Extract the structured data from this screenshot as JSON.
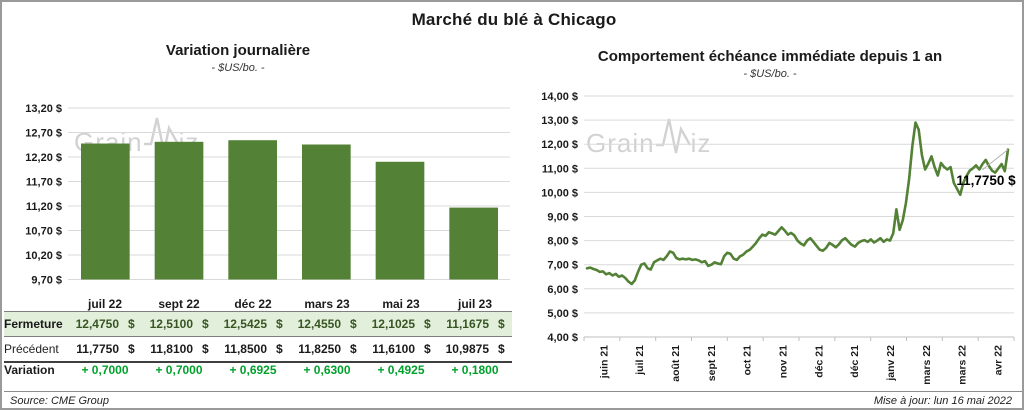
{
  "page": {
    "title": "Marché du blé à Chicago",
    "source": "Source: CME Group",
    "updated": "Mise à jour: lun 16 mai 2022",
    "watermark_prefix": "Grain",
    "watermark_suffix": "iz"
  },
  "colors": {
    "chart_green": "#538135",
    "fermeture_text": "#375623",
    "variation_green": "#00a12b",
    "highlight_row_bg": "#e2efda",
    "gridline": "#d9d9d9",
    "axis_gray": "#bfbfbf",
    "frame_border": "#9a9a9a",
    "watermark_gray": "#d2d2d2"
  },
  "chart_data": [
    {
      "type": "bar",
      "title": "Variation journalière",
      "subtitle": "- $US/bo. -",
      "categories": [
        "juil 22",
        "sept 22",
        "déc 22",
        "mars 23",
        "mai 23",
        "juil 23"
      ],
      "values": [
        12.475,
        12.51,
        12.5425,
        12.455,
        12.1025,
        11.1675
      ],
      "ylabel": "$US/bo.",
      "ylim": [
        9.7,
        13.2
      ],
      "ytick_step": 0.5,
      "ytick_labels": [
        "13,20 $",
        "12,70 $",
        "12,20 $",
        "11,70 $",
        "11,20 $",
        "10,70 $",
        "10,20 $",
        "9,70 $"
      ],
      "grid": true
    },
    {
      "type": "line",
      "title": "Comportement échéance immédiate depuis 1 an",
      "subtitle": "- $US/bo. -",
      "x_tick_labels": [
        "juin 21",
        "juil 21",
        "août 21",
        "sept 21",
        "oct 21",
        "nov 21",
        "déc 21",
        "déc 21",
        "janv 22",
        "mars 22",
        "mars 22",
        "avr 22"
      ],
      "ylim": [
        4.0,
        14.0
      ],
      "ytick_step": 1.0,
      "ytick_labels": [
        "14,00 $",
        "13,00 $",
        "12,00 $",
        "11,00 $",
        "10,00 $",
        "9,00 $",
        "8,00 $",
        "7,00 $",
        "6,00 $",
        "5,00 $",
        "4,00 $"
      ],
      "annotation": "11,7750 $",
      "last_value": 11.775,
      "grid": true,
      "values": [
        6.85,
        6.88,
        6.82,
        6.78,
        6.7,
        6.72,
        6.6,
        6.65,
        6.55,
        6.62,
        6.5,
        6.55,
        6.45,
        6.3,
        6.2,
        6.35,
        6.7,
        7.0,
        7.05,
        6.85,
        6.8,
        7.1,
        7.18,
        7.25,
        7.2,
        7.35,
        7.55,
        7.5,
        7.28,
        7.22,
        7.25,
        7.22,
        7.25,
        7.2,
        7.22,
        7.18,
        7.1,
        7.15,
        6.95,
        7.0,
        7.1,
        7.05,
        7.02,
        7.35,
        7.5,
        7.45,
        7.25,
        7.2,
        7.35,
        7.42,
        7.55,
        7.62,
        7.75,
        7.9,
        8.1,
        8.25,
        8.2,
        8.35,
        8.3,
        8.25,
        8.4,
        8.55,
        8.42,
        8.25,
        8.32,
        8.22,
        8.0,
        7.88,
        7.8,
        8.0,
        8.1,
        7.95,
        7.78,
        7.62,
        7.58,
        7.7,
        7.9,
        7.82,
        7.72,
        7.85,
        8.02,
        8.1,
        7.95,
        7.82,
        7.75,
        7.9,
        7.98,
        8.02,
        7.95,
        8.05,
        7.92,
        8.0,
        8.1,
        7.95,
        8.05,
        8.0,
        8.3,
        9.3,
        8.45,
        8.85,
        9.55,
        10.55,
        11.9,
        12.9,
        12.6,
        11.55,
        10.95,
        11.2,
        11.5,
        11.05,
        10.7,
        11.22,
        11.05,
        10.95,
        11.05,
        10.4,
        10.15,
        9.9,
        10.4,
        10.68,
        10.9,
        11.0,
        11.12,
        10.95,
        11.18,
        11.35,
        11.1,
        10.9,
        10.82,
        11.0,
        11.18,
        10.88,
        11.775
      ]
    }
  ],
  "table": {
    "currency_symbol": "$",
    "columns": [
      "juil 22",
      "sept 22",
      "déc 22",
      "mars 23",
      "mai 23",
      "juil 23"
    ],
    "rows": [
      {
        "label": "Fermeture",
        "values": [
          "12,4750",
          "12,5100",
          "12,5425",
          "12,4550",
          "12,1025",
          "11,1675"
        ],
        "currency": true,
        "highlight": true
      },
      {
        "label": "Précédent",
        "values": [
          "11,7750",
          "11,8100",
          "11,8500",
          "11,8250",
          "11,6100",
          "10,9875"
        ],
        "currency": true,
        "highlight": false
      },
      {
        "label": "Variation",
        "values": [
          "+ 0,7000",
          "+ 0,7000",
          "+ 0,6925",
          "+ 0,6300",
          "+ 0,4925",
          "+ 0,1800"
        ],
        "currency": false,
        "highlight": false
      }
    ]
  }
}
